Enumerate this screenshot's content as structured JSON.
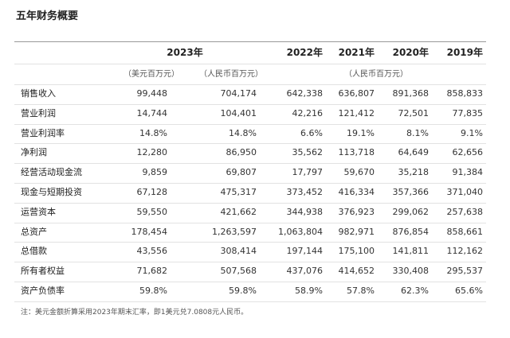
{
  "title": "五年财务概要",
  "table": {
    "header": [
      "2023年",
      "2022年",
      "2021年",
      "2020年",
      "2019年"
    ],
    "units": [
      "（美元百万元）",
      "（人民币百万元）",
      "（人民币百万元）"
    ],
    "rows": [
      {
        "label": "销售收入",
        "cells": [
          "99,448",
          "704,174",
          "642,338",
          "636,807",
          "891,368",
          "858,833"
        ]
      },
      {
        "label": "营业利润",
        "cells": [
          "14,744",
          "104,401",
          "42,216",
          "121,412",
          "72,501",
          "77,835"
        ]
      },
      {
        "label": "营业利润率",
        "cells": [
          "14.8%",
          "14.8%",
          "6.6%",
          "19.1%",
          "8.1%",
          "9.1%"
        ]
      },
      {
        "label": "净利润",
        "cells": [
          "12,280",
          "86,950",
          "35,562",
          "113,718",
          "64,649",
          "62,656"
        ]
      },
      {
        "label": "经营活动现金流",
        "cells": [
          "9,859",
          "69,807",
          "17,797",
          "59,670",
          "35,218",
          "91,384"
        ]
      },
      {
        "label": "现金与短期投资",
        "cells": [
          "67,128",
          "475,317",
          "373,452",
          "416,334",
          "357,366",
          "371,040"
        ]
      },
      {
        "label": "运营资本",
        "cells": [
          "59,550",
          "421,662",
          "344,938",
          "376,923",
          "299,062",
          "257,638"
        ]
      },
      {
        "label": "总资产",
        "cells": [
          "178,454",
          "1,263,597",
          "1,063,804",
          "982,971",
          "876,854",
          "858,661"
        ]
      },
      {
        "label": "总借款",
        "cells": [
          "43,556",
          "308,414",
          "197,144",
          "175,100",
          "141,811",
          "112,162"
        ]
      },
      {
        "label": "所有者权益",
        "cells": [
          "71,682",
          "507,568",
          "437,076",
          "414,652",
          "330,408",
          "295,537"
        ]
      },
      {
        "label": "资产负债率",
        "cells": [
          "59.8%",
          "59.8%",
          "58.9%",
          "57.8%",
          "62.3%",
          "65.6%"
        ]
      }
    ]
  },
  "footnote": "注：美元金额折算采用2023年期末汇率，即1美元兑7.0808元人民币。"
}
